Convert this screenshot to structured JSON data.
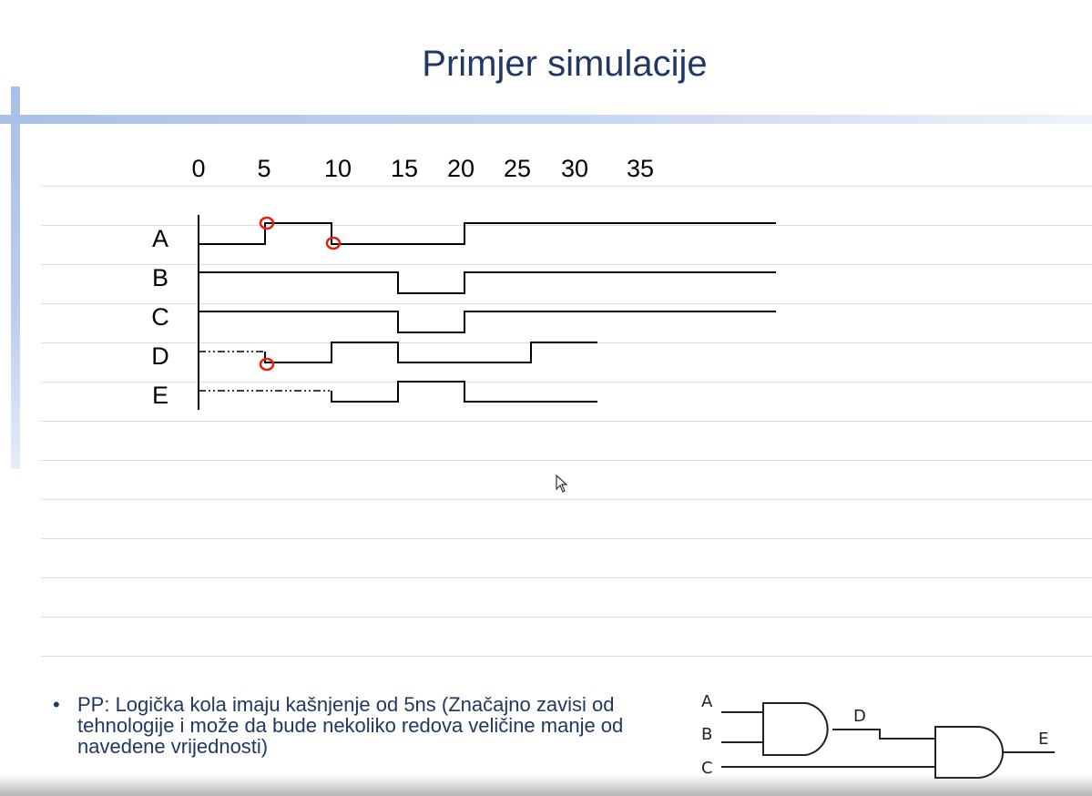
{
  "slide": {
    "title": "Primjer simulacije"
  },
  "timing_diagram": {
    "time_ticks": [
      "0",
      "5",
      "10",
      "15",
      "20",
      "25",
      "30",
      "35"
    ],
    "signals": [
      {
        "name": "A",
        "levels": [
          {
            "from": 0,
            "to": 5,
            "level": 0
          },
          {
            "from": 5,
            "to": 10,
            "level": 1
          },
          {
            "from": 10,
            "to": 20,
            "level": 0
          },
          {
            "from": 20,
            "to": 50,
            "level": 1
          }
        ]
      },
      {
        "name": "B",
        "levels": [
          {
            "from": 0,
            "to": 15,
            "level": 1
          },
          {
            "from": 15,
            "to": 20,
            "level": 0
          },
          {
            "from": 20,
            "to": 50,
            "level": 1
          }
        ]
      },
      {
        "name": "C",
        "levels": [
          {
            "from": 0,
            "to": 15,
            "level": 1
          },
          {
            "from": 15,
            "to": 20,
            "level": 0
          },
          {
            "from": 20,
            "to": 50,
            "level": 1
          }
        ]
      },
      {
        "name": "D",
        "unknown_until": 5,
        "levels": [
          {
            "from": 5,
            "to": 10,
            "level": 0
          },
          {
            "from": 10,
            "to": 15,
            "level": 1
          },
          {
            "from": 15,
            "to": 25,
            "level": 0
          },
          {
            "from": 25,
            "to": 30,
            "level": 1
          }
        ]
      },
      {
        "name": "E",
        "unknown_until": 10,
        "levels": [
          {
            "from": 10,
            "to": 15,
            "level": 0
          },
          {
            "from": 15,
            "to": 20,
            "level": 1
          },
          {
            "from": 20,
            "to": 30,
            "level": 0
          }
        ]
      }
    ],
    "highlight_marks": [
      {
        "signal": "A",
        "time": 5
      },
      {
        "signal": "A",
        "time": 10
      },
      {
        "signal": "D",
        "time": 5
      }
    ],
    "colors": {
      "waveform": "#000000",
      "highlight": "#e02010"
    }
  },
  "bullet": {
    "marker": "•",
    "text": "PP: Logička kola imaju kašnjenje od 5ns (Značajno zavisi od tehnologije i može da bude nekoliko redova veličine manje od navedene vrijednosti)"
  },
  "circuit": {
    "inputs": [
      "A",
      "B",
      "C"
    ],
    "intermediate": "D",
    "output": "E",
    "gates": [
      "AND",
      "AND"
    ]
  },
  "colors": {
    "title": "#1f3864",
    "accent_bar": "#a9bfe6",
    "ruled_line": "#dcdcdc"
  }
}
